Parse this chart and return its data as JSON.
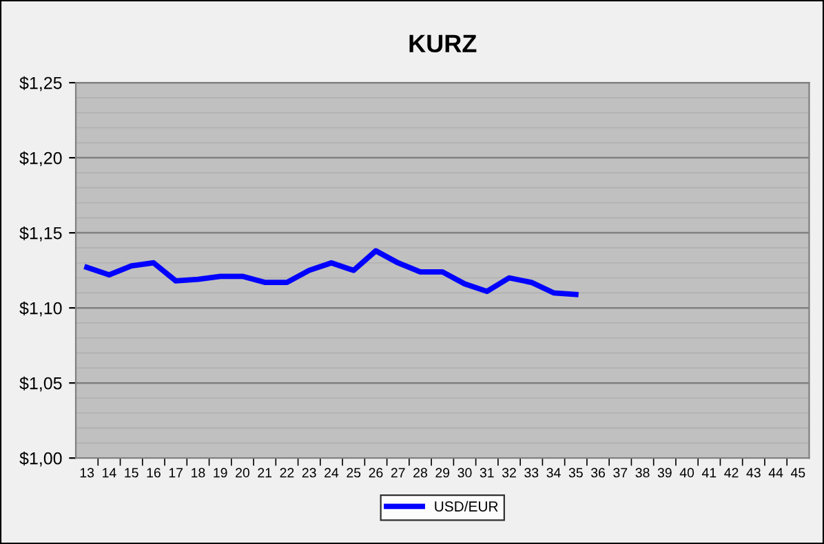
{
  "chart_data": {
    "type": "line",
    "title": "KURZ",
    "categories": [
      "13",
      "14",
      "15",
      "16",
      "17",
      "18",
      "19",
      "20",
      "21",
      "22",
      "23",
      "24",
      "25",
      "26",
      "27",
      "28",
      "29",
      "30",
      "31",
      "32",
      "33",
      "34",
      "35",
      "36",
      "37",
      "38",
      "39",
      "40",
      "41",
      "42",
      "43",
      "44",
      "45"
    ],
    "series": [
      {
        "name": "USD/EUR",
        "color": "#0000ff",
        "values": [
          1.127,
          1.122,
          1.128,
          1.13,
          1.118,
          1.119,
          1.121,
          1.121,
          1.117,
          1.117,
          1.125,
          1.13,
          1.125,
          1.138,
          1.13,
          1.124,
          1.124,
          1.116,
          1.111,
          1.12,
          1.117,
          1.11,
          1.109,
          null,
          null,
          null,
          null,
          null,
          null,
          null,
          null,
          null,
          null
        ]
      }
    ],
    "ylim": [
      1.0,
      1.25
    ],
    "yticks": [
      {
        "value": 1.0,
        "label": "$1,00"
      },
      {
        "value": 1.05,
        "label": "$1,05"
      },
      {
        "value": 1.1,
        "label": "$1,10"
      },
      {
        "value": 1.15,
        "label": "$1,15"
      },
      {
        "value": 1.2,
        "label": "$1,20"
      },
      {
        "value": 1.25,
        "label": "$1,25"
      }
    ],
    "grid": "y",
    "legend": "bottom",
    "marker": "none",
    "line_style": "solid"
  }
}
